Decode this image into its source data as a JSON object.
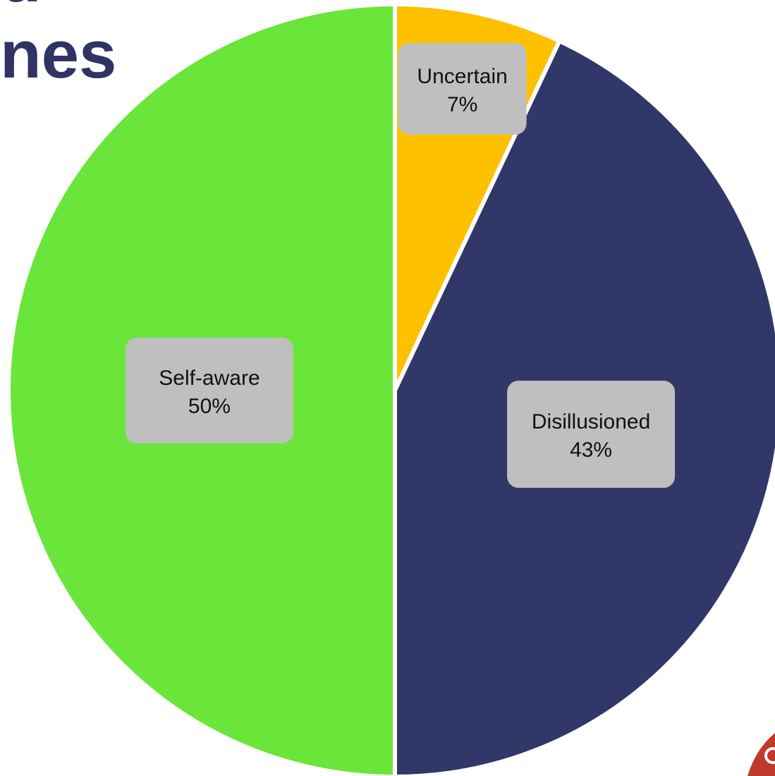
{
  "title_fragment": {
    "line1": "d",
    "line2": "nes"
  },
  "chart_data": {
    "type": "pie",
    "title": "",
    "start_angle_deg": 0,
    "direction": "clockwise",
    "slices": [
      {
        "label": "Uncertain",
        "value": 7,
        "display": "7%",
        "color": "#ffc000"
      },
      {
        "label": "Disillusioned",
        "value": 43,
        "display": "43%",
        "color": "#323769"
      },
      {
        "label": "Self-aware",
        "value": 50,
        "display": "50%",
        "color": "#6ae53a"
      }
    ],
    "label_box_color": "#bfbfbf",
    "separator_color": "#ffffff",
    "legend": "none"
  },
  "decor": {
    "corner_logo_color": "#c0392b"
  }
}
